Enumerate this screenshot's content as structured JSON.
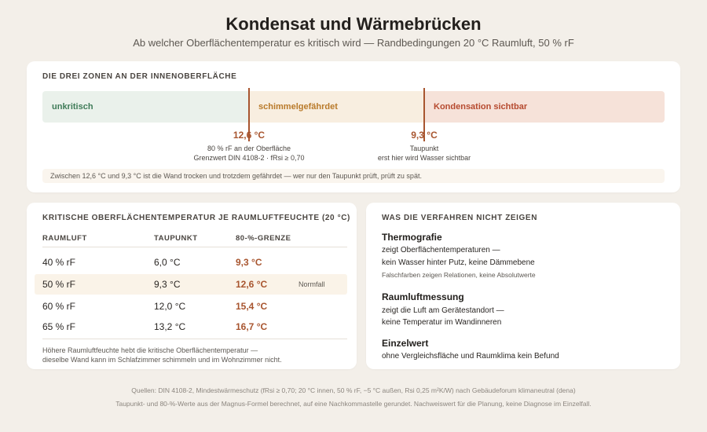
{
  "header": {
    "title": "Kondensat und Wärmebrücken",
    "subtitle": "Ab welcher Oberflächentemperatur es kritisch wird — Randbedingungen 20 °C Raumluft, 50 % rF"
  },
  "zones": {
    "heading": "DIE DREI ZONEN AN DER INNENOBERFLÄCHE",
    "items": [
      {
        "label": "unkritisch",
        "color": "#3f7b58"
      },
      {
        "label": "schimmelgefährdet",
        "color": "#b97a2a"
      },
      {
        "label": "Kondensation sichtbar",
        "color": "#b64a2f"
      }
    ],
    "markers": [
      {
        "value": "12,6 °C",
        "line1": "80 % rF an der Oberfläche",
        "line2": "Grenzwert DIN 4108-2 · fRsi ≥ 0,70"
      },
      {
        "value": "9,3 °C",
        "line1": "Taupunkt",
        "line2": "erst hier wird Wasser sichtbar"
      }
    ],
    "note": "Zwischen 12,6 °C und 9,3 °C ist die Wand trocken und trotzdem gefährdet — wer nur den Taupunkt prüft, prüft zu spät."
  },
  "table": {
    "heading": "KRITISCHE OBERFLÄCHENTEMPERATUR JE RAUMLUFTFEUCHTE (20 °C)",
    "columns": [
      "RAUMLUFT",
      "TAUPUNKT",
      "80-%-GRENZE"
    ],
    "rows": [
      {
        "humidity": "40 % rF",
        "dewpoint": "6,0 °C",
        "limit": "9,3 °C",
        "tag": ""
      },
      {
        "humidity": "50 % rF",
        "dewpoint": "9,3 °C",
        "limit": "12,6 °C",
        "tag": "Normfall"
      },
      {
        "humidity": "60 % rF",
        "dewpoint": "12,0 °C",
        "limit": "15,4 °C",
        "tag": ""
      },
      {
        "humidity": "65 % rF",
        "dewpoint": "13,2 °C",
        "limit": "16,7 °C",
        "tag": ""
      }
    ],
    "footnote_1": "Höhere Raumluftfeuchte hebt die kritische Oberflächentemperatur —",
    "footnote_2": "dieselbe Wand kann im Schlafzimmer schimmeln und im Wohnzimmer nicht."
  },
  "methods": {
    "heading": "WAS DIE VERFAHREN NICHT ZEIGEN",
    "thermo": {
      "title": "Thermografie",
      "line1": "zeigt Oberflächentemperaturen —",
      "line2": "kein Wasser hinter Putz, keine Dämmebene",
      "note": "Falschfarben zeigen Relationen, keine Absolutwerte"
    },
    "air": {
      "title": "Raumluftmessung",
      "line1": "zeigt die Luft am Gerätestandort —",
      "line2": "keine Temperatur im Wandinneren"
    },
    "single": {
      "title": "Einzelwert",
      "line1": "ohne Vergleichsfläche und Raumklima kein Befund"
    }
  },
  "footer": {
    "source_1": "Quellen: DIN 4108-2, Mindestwärmeschutz (fRsi ≥ 0,70; 20 °C innen, 50 % rF, −5 °C außen, Rsi 0,25 m²K/W) nach Gebäudeforum klimaneutral (dena)",
    "source_2": "Taupunkt- und 80-%-Werte aus der Magnus-Formel berechnet, auf eine Nachkommastelle gerundet. Nachweiswert für die Planung, keine Diagnose im Einzelfall."
  }
}
